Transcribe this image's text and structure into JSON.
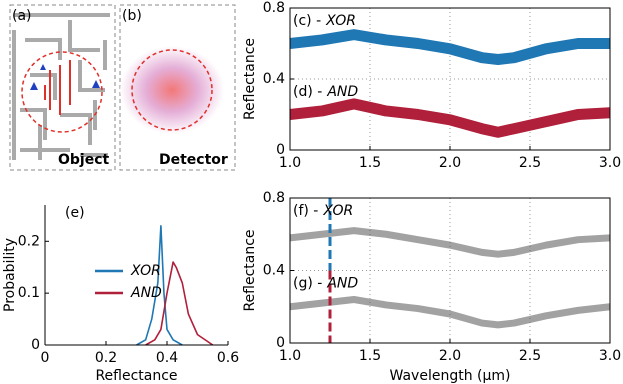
{
  "images": [
    {
      "label": "(a)",
      "caption": "Object"
    },
    {
      "label": "(b)",
      "caption": "Detector"
    }
  ],
  "chart_data": [
    {
      "type": "line",
      "ylabel": "Reflectance",
      "x": [
        1.0,
        1.2,
        1.4,
        1.6,
        1.8,
        2.0,
        2.2,
        2.3,
        2.4,
        2.6,
        2.8,
        3.0
      ],
      "series": [
        {
          "name": "XOR",
          "color": "#1f77b4",
          "values": [
            0.6,
            0.62,
            0.65,
            0.62,
            0.6,
            0.57,
            0.52,
            0.51,
            0.52,
            0.57,
            0.6,
            0.6
          ]
        },
        {
          "name": "AND",
          "color": "#b0203a",
          "values": [
            0.2,
            0.22,
            0.26,
            0.22,
            0.2,
            0.17,
            0.12,
            0.1,
            0.12,
            0.16,
            0.2,
            0.21
          ]
        }
      ],
      "annotations": [
        "(c) -",
        "(d) -"
      ],
      "xlim": [
        1.0,
        3.0
      ],
      "xticks": [
        {
          "value": 1,
          "label": "1.0"
        },
        1.5,
        {
          "value": 2,
          "label": "2.0"
        },
        2.5,
        {
          "value": 3,
          "label": "3.0"
        }
      ],
      "ylim": [
        0,
        0.8
      ],
      "yticks": [
        0,
        0.4,
        0.8
      ],
      "grid": true
    },
    {
      "type": "line",
      "xlabel": "Wavelength (µm)",
      "ylabel": "Reflectance",
      "x": [
        1.0,
        1.2,
        1.4,
        1.6,
        1.8,
        2.0,
        2.2,
        2.3,
        2.4,
        2.6,
        2.8,
        3.0
      ],
      "series": [
        {
          "name": "XOR",
          "color": "#555555",
          "values": [
            0.58,
            0.6,
            0.62,
            0.6,
            0.57,
            0.54,
            0.5,
            0.49,
            0.5,
            0.54,
            0.57,
            0.58
          ]
        },
        {
          "name": "AND",
          "color": "#555555",
          "values": [
            0.2,
            0.22,
            0.24,
            0.21,
            0.19,
            0.16,
            0.11,
            0.1,
            0.11,
            0.15,
            0.18,
            0.2
          ]
        }
      ],
      "annotations": [
        "(f) -",
        "(g) -"
      ],
      "vlines": [
        {
          "x": 1.25,
          "color": "#1f77b4"
        },
        {
          "x": 1.25,
          "color": "#b0203a"
        }
      ],
      "xlim": [
        1.0,
        3.0
      ],
      "xticks": [
        {
          "value": 1,
          "label": "1.0"
        },
        1.5,
        {
          "value": 2,
          "label": "2.0"
        },
        2.5,
        {
          "value": 3,
          "label": "3.0"
        }
      ],
      "ylim": [
        0,
        0.8
      ],
      "yticks": [
        0,
        0.4,
        0.8
      ],
      "grid": true
    },
    {
      "type": "line",
      "xlabel": "Reflectance",
      "ylabel": "Probability",
      "annotations": [
        "(e)"
      ],
      "series": [
        {
          "name": "XOR",
          "color": "#1f77b4",
          "x": [
            0.3,
            0.33,
            0.35,
            0.37,
            0.38,
            0.39,
            0.4,
            0.42,
            0.45
          ],
          "values": [
            0,
            0.01,
            0.05,
            0.12,
            0.23,
            0.1,
            0.03,
            0.01,
            0
          ]
        },
        {
          "name": "AND",
          "color": "#b0203a",
          "x": [
            0.33,
            0.36,
            0.38,
            0.4,
            0.42,
            0.43,
            0.45,
            0.47,
            0.5,
            0.55
          ],
          "values": [
            0,
            0.01,
            0.03,
            0.1,
            0.16,
            0.15,
            0.12,
            0.06,
            0.02,
            0
          ]
        }
      ],
      "legend": "center left",
      "xlim": [
        0,
        0.6
      ],
      "xticks": [
        0,
        0.2,
        0.4,
        0.6
      ],
      "ylim": [
        0,
        0.27
      ],
      "yticks": [
        0,
        0.1,
        0.2
      ],
      "grid": false
    }
  ]
}
